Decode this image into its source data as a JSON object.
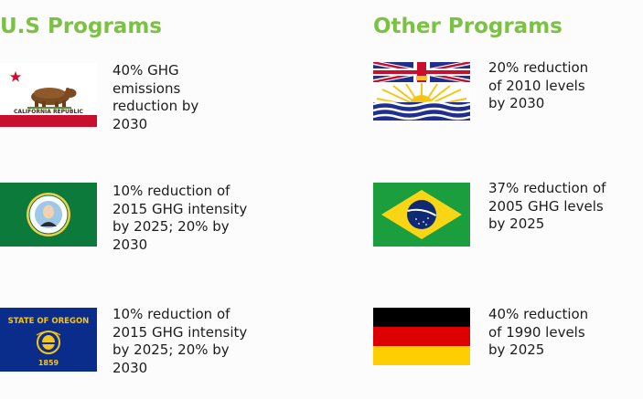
{
  "us_programs": {
    "heading": "U.S Programs",
    "items": [
      {
        "flag": "california-flag-icon",
        "flag_text": "CALIFORNIA REPUBLIC",
        "lines": [
          "40% GHG",
          "emissions",
          "reduction by",
          "2030"
        ]
      },
      {
        "flag": "washington-flag-icon",
        "lines": [
          "10% reduction of",
          "2015 GHG intensity",
          "by 2025; 20% by",
          "2030"
        ]
      },
      {
        "flag": "oregon-flag-icon",
        "flag_text": "STATE OF OREGON",
        "flag_year": "1859",
        "lines": [
          "10% reduction of",
          "2015 GHG intensity",
          "by 2025; 20% by",
          "2030"
        ]
      }
    ]
  },
  "other_programs": {
    "heading": "Other Programs",
    "items": [
      {
        "flag": "british-columbia-flag-icon",
        "lines": [
          "20% reduction",
          "of 2010 levels",
          "by 2030"
        ]
      },
      {
        "flag": "brazil-flag-icon",
        "lines": [
          "37% reduction of",
          "2005 GHG levels",
          "by 2025"
        ]
      },
      {
        "flag": "germany-flag-icon",
        "lines": [
          "40% reduction",
          "of 1990 levels",
          "by 2025"
        ]
      }
    ]
  },
  "colors": {
    "heading": "#7cc242",
    "text": "#1c1c1c",
    "california_red": "#c8102e",
    "washington_green": "#0b7a3b",
    "oregon_navy": "#0a2d8c",
    "oregon_gold": "#f6c51a",
    "bc_blue": "#1f2f8f",
    "bc_sun": "#f7c413",
    "brazil_green": "#1b9e3e",
    "brazil_yellow": "#f9d615",
    "brazil_blue": "#0f2a72",
    "germany_red": "#dd0000",
    "germany_gold": "#ffce00"
  }
}
